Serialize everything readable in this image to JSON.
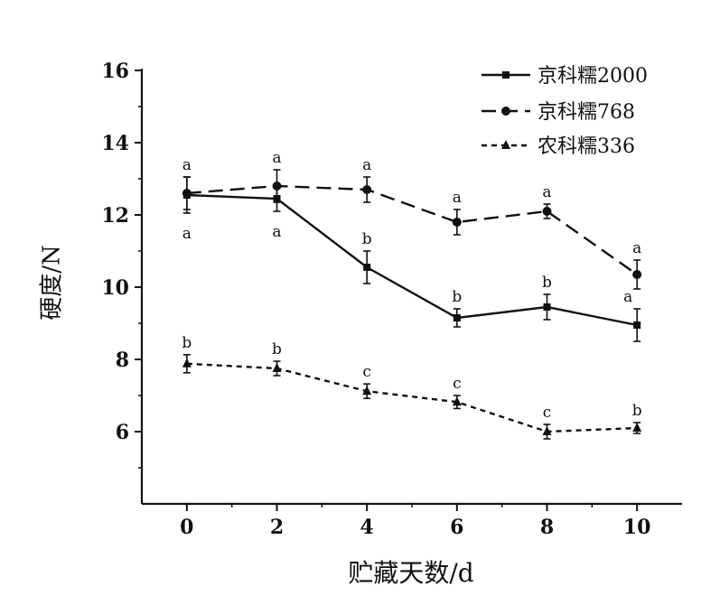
{
  "chart_data": {
    "type": "line",
    "xlabel": "贮藏天数/d",
    "ylabel": "硬度/N",
    "xlim": [
      -1,
      11
    ],
    "ylim": [
      4,
      16
    ],
    "x": [
      0,
      2,
      4,
      6,
      8,
      10
    ],
    "xticks": [
      "0",
      "2",
      "4",
      "6",
      "8",
      "10"
    ],
    "yticks": [
      "6",
      "8",
      "10",
      "12",
      "14",
      "16"
    ],
    "grid": false,
    "legend": "top-right",
    "series": [
      {
        "name": "京科糯2000",
        "line": "solid",
        "marker": "square",
        "values": [
          12.55,
          12.45,
          10.55,
          9.15,
          9.45,
          8.95
        ],
        "errors": [
          0.5,
          0.35,
          0.45,
          0.25,
          0.35,
          0.45
        ],
        "letters": [
          "a",
          "a",
          "b",
          "b",
          "b",
          "a"
        ]
      },
      {
        "name": "京科糯768",
        "line": "dashed",
        "marker": "circle",
        "values": [
          12.6,
          12.8,
          12.7,
          11.8,
          12.1,
          10.35
        ],
        "errors": [
          0.45,
          0.45,
          0.35,
          0.35,
          0.2,
          0.4
        ],
        "letters": [
          "a",
          "a",
          "a",
          "a",
          "a",
          "a"
        ]
      },
      {
        "name": "农科糯336",
        "line": "dotted",
        "marker": "triangle",
        "values": [
          7.88,
          7.75,
          7.12,
          6.82,
          6.0,
          6.1
        ],
        "errors": [
          0.25,
          0.2,
          0.2,
          0.18,
          0.2,
          0.15
        ],
        "letters": [
          "b",
          "b",
          "c",
          "c",
          "c",
          "b"
        ]
      }
    ]
  }
}
